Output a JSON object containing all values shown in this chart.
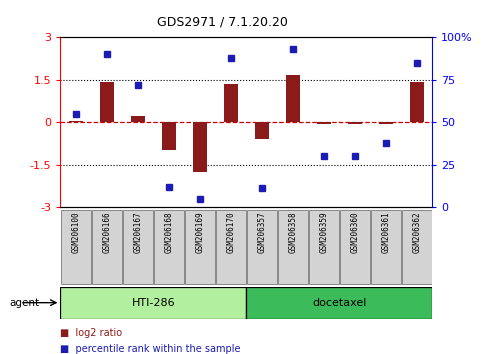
{
  "title": "GDS2971 / 7.1.20.20",
  "samples": [
    "GSM206100",
    "GSM206166",
    "GSM206167",
    "GSM206168",
    "GSM206169",
    "GSM206170",
    "GSM206357",
    "GSM206358",
    "GSM206359",
    "GSM206360",
    "GSM206361",
    "GSM206362"
  ],
  "log2_ratio": [
    0.05,
    1.42,
    0.2,
    -1.0,
    -1.75,
    1.35,
    -0.6,
    1.65,
    -0.08,
    -0.08,
    -0.08,
    1.42
  ],
  "percentile": [
    55,
    90,
    72,
    12,
    5,
    88,
    11,
    93,
    30,
    30,
    38,
    85
  ],
  "groups": [
    {
      "label": "HTI-286",
      "start": 0,
      "end": 5,
      "color": "#B2F0A0"
    },
    {
      "label": "docetaxel",
      "start": 6,
      "end": 11,
      "color": "#3CBB5A"
    }
  ],
  "agent_label": "agent",
  "ylim": [
    -3,
    3
  ],
  "y2lim": [
    0,
    100
  ],
  "yticks_left": [
    -3,
    -1.5,
    0,
    1.5,
    3
  ],
  "yticks_right": [
    0,
    25,
    50,
    75,
    100
  ],
  "hline_y": [
    1.5,
    -1.5
  ],
  "bar_color": "#8B1A1A",
  "dot_color": "#1C1CB4",
  "zero_line_color": "#CC0000",
  "bar_width": 0.45,
  "legend_bar_label": "log2 ratio",
  "legend_dot_label": "percentile rank within the sample",
  "background_color": "#ffffff"
}
